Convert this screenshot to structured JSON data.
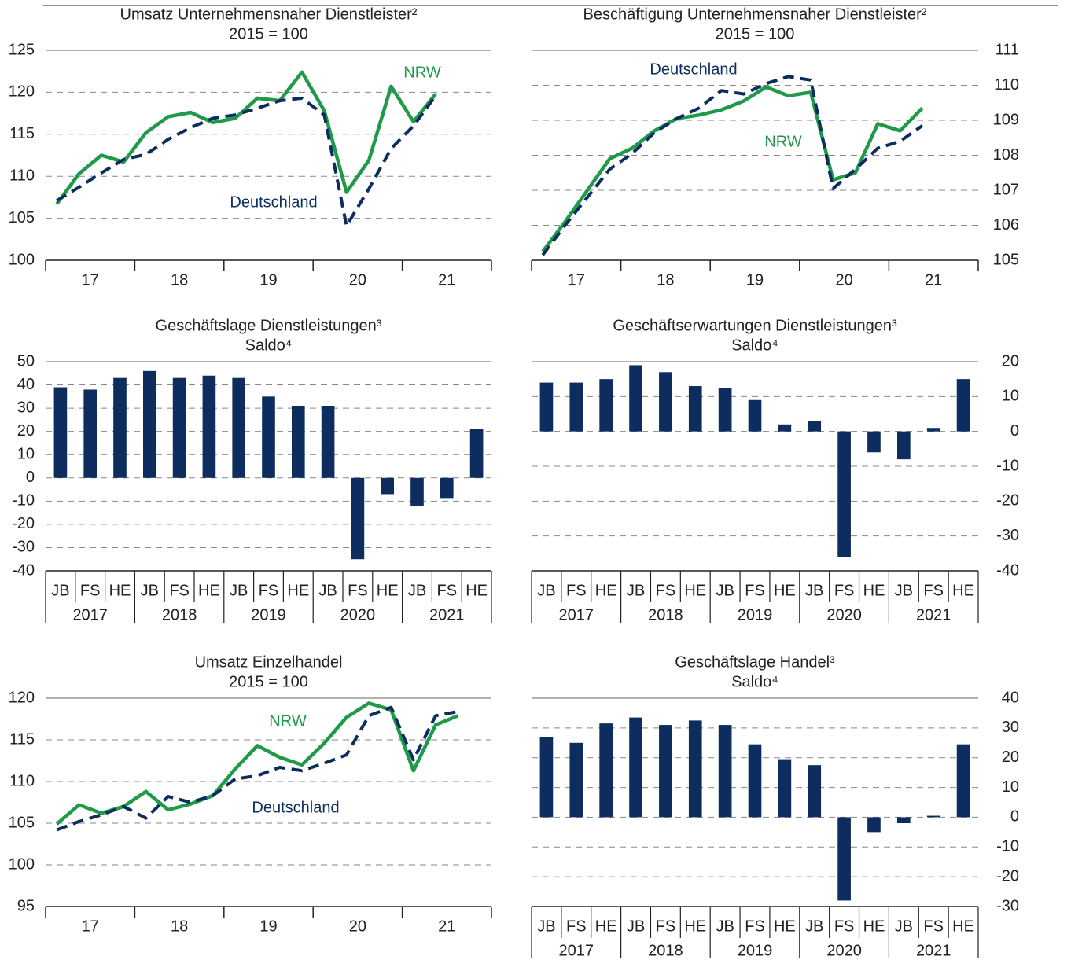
{
  "chart_data": [
    {
      "type": "line",
      "title": "Umsatz Unternehmensnaher Dienstleister²",
      "subtitle": "2015 = 100",
      "x": [
        17.125,
        17.375,
        17.625,
        17.875,
        18.125,
        18.375,
        18.625,
        18.875,
        19.125,
        19.375,
        19.625,
        19.875,
        20.125,
        20.375,
        20.625,
        20.875,
        21.125,
        21.375
      ],
      "xlim": [
        17,
        22
      ],
      "xticks": [
        {
          "value": 17.5,
          "label": "17"
        },
        {
          "value": 18.5,
          "label": "18"
        },
        {
          "value": 19.5,
          "label": "19"
        },
        {
          "value": 20.5,
          "label": "20"
        },
        {
          "value": 21.5,
          "label": "21"
        }
      ],
      "ylim": [
        100,
        125
      ],
      "yticks": [
        100,
        105,
        110,
        115,
        120,
        125
      ],
      "y_axis": "left",
      "grid": true,
      "series": [
        {
          "name": "NRW",
          "color": "#1f9a48",
          "line_style": "solid",
          "values": [
            106.7,
            110.3,
            112.5,
            111.7,
            115.2,
            117.1,
            117.6,
            116.4,
            116.9,
            119.3,
            119.0,
            122.4,
            117.8,
            108.1,
            111.9,
            120.7,
            116.5,
            119.8
          ]
        },
        {
          "name": "Deutschland",
          "color": "#0c2d5e",
          "line_style": "dashed",
          "values": [
            107.1,
            108.7,
            110.4,
            112.0,
            112.6,
            114.4,
            115.8,
            116.9,
            117.3,
            118.1,
            119.0,
            119.3,
            117.3,
            104.1,
            108.5,
            113.3,
            116.0,
            119.6
          ]
        }
      ]
    },
    {
      "type": "line",
      "title": "Beschäftigung Unternehmensnaher Dienstleister²",
      "subtitle": "2015 = 100",
      "x": [
        17.125,
        17.375,
        17.625,
        17.875,
        18.125,
        18.375,
        18.625,
        18.875,
        19.125,
        19.375,
        19.625,
        19.875,
        20.125,
        20.375,
        20.625,
        20.875,
        21.125,
        21.375
      ],
      "xlim": [
        17,
        22
      ],
      "xticks": [
        {
          "value": 17.5,
          "label": "17"
        },
        {
          "value": 18.5,
          "label": "18"
        },
        {
          "value": 19.5,
          "label": "19"
        },
        {
          "value": 20.5,
          "label": "20"
        },
        {
          "value": 21.5,
          "label": "21"
        }
      ],
      "ylim": [
        105,
        111
      ],
      "yticks": [
        105,
        106,
        107,
        108,
        109,
        110,
        111
      ],
      "y_axis": "right",
      "grid": true,
      "series": [
        {
          "name": "NRW",
          "color": "#1f9a48",
          "line_style": "solid",
          "values": [
            105.25,
            106.1,
            107.0,
            107.9,
            108.2,
            108.7,
            109.05,
            109.15,
            109.3,
            109.55,
            109.95,
            109.7,
            109.8,
            107.3,
            107.5,
            108.9,
            108.7,
            109.35
          ]
        },
        {
          "name": "Deutschland",
          "color": "#0c2d5e",
          "line_style": "dashed",
          "values": [
            105.15,
            106.0,
            106.8,
            107.6,
            108.05,
            108.65,
            109.05,
            109.35,
            109.85,
            109.75,
            110.05,
            110.25,
            110.15,
            107.05,
            107.6,
            108.2,
            108.4,
            108.85
          ]
        }
      ]
    },
    {
      "type": "bar",
      "title": "Geschäftslage Dienstleistungen³",
      "subtitle": "Saldo⁴",
      "categories": [
        "JB",
        "FS",
        "HE",
        "JB",
        "FS",
        "HE",
        "JB",
        "FS",
        "HE",
        "JB",
        "FS",
        "HE",
        "JB",
        "FS",
        "HE"
      ],
      "groups": [
        "2017",
        "2018",
        "2019",
        "2020",
        "2021"
      ],
      "values": [
        39,
        38,
        43,
        46,
        43,
        44,
        43,
        35,
        31,
        31,
        -35,
        -7,
        -12,
        -9,
        21
      ],
      "color": "#0c2d5e",
      "ylim": [
        -40,
        50
      ],
      "yticks": [
        -40,
        -30,
        -20,
        -10,
        0,
        10,
        20,
        30,
        40,
        50
      ],
      "y_axis": "left",
      "grid": true
    },
    {
      "type": "bar",
      "title": "Geschäftserwartungen Dienstleistungen³",
      "subtitle": "Saldo⁴",
      "categories": [
        "JB",
        "FS",
        "HE",
        "JB",
        "FS",
        "HE",
        "JB",
        "FS",
        "HE",
        "JB",
        "FS",
        "HE",
        "JB",
        "FS",
        "HE"
      ],
      "groups": [
        "2017",
        "2018",
        "2019",
        "2020",
        "2021"
      ],
      "values": [
        14,
        14,
        15,
        19,
        17,
        13,
        12.5,
        9,
        2,
        3,
        -36,
        -6,
        -8,
        1,
        15
      ],
      "color": "#0c2d5e",
      "ylim": [
        -40,
        20
      ],
      "yticks": [
        -40,
        -30,
        -20,
        -10,
        0,
        10,
        20
      ],
      "y_axis": "right",
      "grid": true
    },
    {
      "type": "line",
      "title": "Umsatz Einzelhandel",
      "subtitle": "2015 = 100",
      "x": [
        17.125,
        17.375,
        17.625,
        17.875,
        18.125,
        18.375,
        18.625,
        18.875,
        19.125,
        19.375,
        19.625,
        19.875,
        20.125,
        20.375,
        20.625,
        20.875,
        21.125,
        21.375,
        21.625
      ],
      "xlim": [
        17,
        22
      ],
      "xticks": [
        {
          "value": 17.5,
          "label": "17"
        },
        {
          "value": 18.5,
          "label": "18"
        },
        {
          "value": 19.5,
          "label": "19"
        },
        {
          "value": 20.5,
          "label": "20"
        },
        {
          "value": 21.5,
          "label": "21"
        }
      ],
      "ylim": [
        95,
        120
      ],
      "yticks": [
        95,
        100,
        105,
        110,
        115,
        120
      ],
      "y_axis": "left",
      "grid": true,
      "series": [
        {
          "name": "NRW",
          "color": "#1f9a48",
          "line_style": "solid",
          "values": [
            104.9,
            107.2,
            106.2,
            107.0,
            108.8,
            106.6,
            107.3,
            108.3,
            111.5,
            114.3,
            112.9,
            112.0,
            114.6,
            117.7,
            119.4,
            118.6,
            111.3,
            116.8,
            117.9
          ]
        },
        {
          "name": "Deutschland",
          "color": "#0c2d5e",
          "line_style": "dashed",
          "values": [
            104.2,
            105.2,
            106.0,
            107.0,
            105.6,
            108.2,
            107.5,
            108.3,
            110.3,
            110.7,
            111.7,
            111.3,
            112.2,
            113.2,
            117.9,
            118.9,
            112.6,
            117.9,
            118.4
          ]
        }
      ]
    },
    {
      "type": "bar",
      "title": "Geschäftslage Handel³",
      "subtitle": "Saldo⁴",
      "categories": [
        "JB",
        "FS",
        "HE",
        "JB",
        "FS",
        "HE",
        "JB",
        "FS",
        "HE",
        "JB",
        "FS",
        "HE",
        "JB",
        "FS",
        "HE"
      ],
      "groups": [
        "2017",
        "2018",
        "2019",
        "2020",
        "2021"
      ],
      "values": [
        27,
        25,
        31.5,
        33.5,
        31,
        32.5,
        31,
        24.5,
        19.5,
        17.5,
        -28,
        -5,
        -2,
        0.5,
        24.5
      ],
      "color": "#0c2d5e",
      "ylim": [
        -30,
        40
      ],
      "yticks": [
        -30,
        -20,
        -10,
        0,
        10,
        20,
        30,
        40
      ],
      "y_axis": "right",
      "grid": true
    }
  ]
}
